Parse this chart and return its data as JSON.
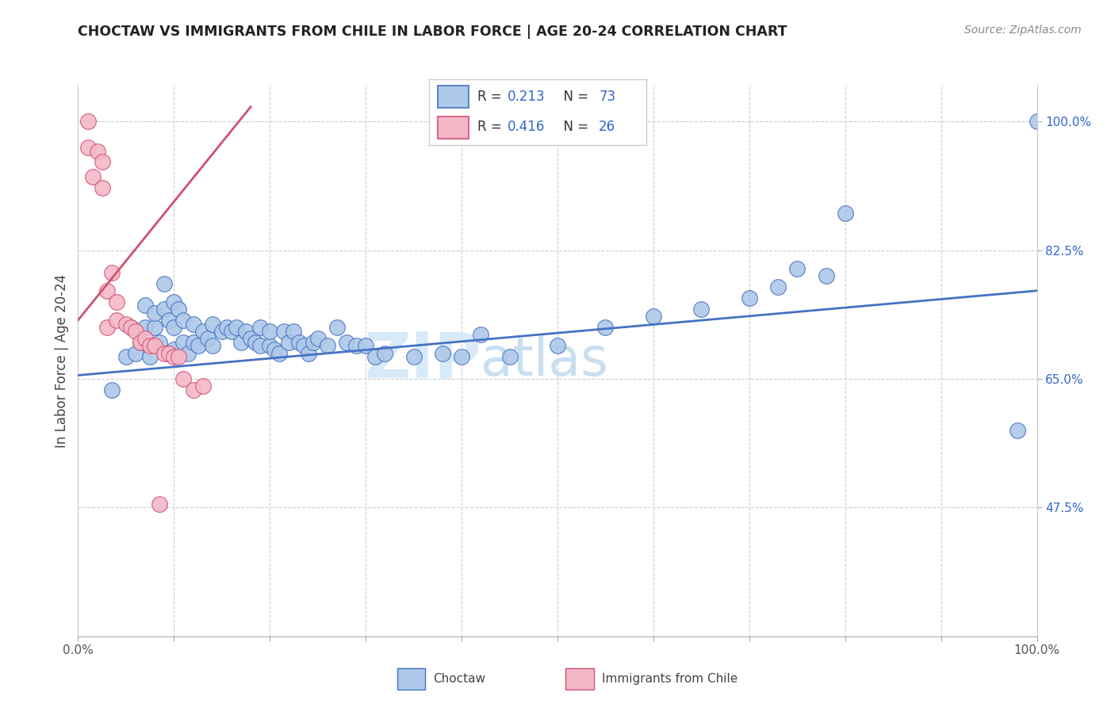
{
  "title": "CHOCTAW VS IMMIGRANTS FROM CHILE IN LABOR FORCE | AGE 20-24 CORRELATION CHART",
  "source": "Source: ZipAtlas.com",
  "ylabel": "In Labor Force | Age 20-24",
  "x_min": 0.0,
  "x_max": 1.0,
  "y_min": 0.3,
  "y_max": 1.05,
  "x_ticks": [
    0.0,
    0.1,
    0.2,
    0.3,
    0.4,
    0.5,
    0.6,
    0.7,
    0.8,
    0.9,
    1.0
  ],
  "y_tick_labels_right": [
    "100.0%",
    "82.5%",
    "65.0%",
    "47.5%"
  ],
  "y_tick_positions_right": [
    1.0,
    0.825,
    0.65,
    0.475
  ],
  "color_blue": "#adc8e8",
  "color_pink": "#f4b8c8",
  "trendline_blue": "#4472c4",
  "trendline_pink": "#d05070",
  "label_choctaw": "Choctaw",
  "label_chile": "Immigrants from Chile",
  "blue_points_x": [
    0.035,
    0.05,
    0.055,
    0.06,
    0.065,
    0.07,
    0.07,
    0.075,
    0.08,
    0.08,
    0.085,
    0.09,
    0.09,
    0.095,
    0.1,
    0.1,
    0.1,
    0.105,
    0.11,
    0.11,
    0.115,
    0.12,
    0.12,
    0.125,
    0.13,
    0.135,
    0.14,
    0.14,
    0.15,
    0.155,
    0.16,
    0.165,
    0.17,
    0.175,
    0.18,
    0.185,
    0.19,
    0.19,
    0.2,
    0.2,
    0.205,
    0.21,
    0.215,
    0.22,
    0.225,
    0.23,
    0.235,
    0.24,
    0.245,
    0.25,
    0.26,
    0.27,
    0.28,
    0.29,
    0.3,
    0.31,
    0.32,
    0.35,
    0.38,
    0.4,
    0.42,
    0.45,
    0.5,
    0.55,
    0.6,
    0.65,
    0.7,
    0.73,
    0.75,
    0.78,
    0.8,
    1.0,
    0.98
  ],
  "blue_points_y": [
    0.635,
    0.68,
    0.72,
    0.685,
    0.7,
    0.72,
    0.75,
    0.68,
    0.72,
    0.74,
    0.7,
    0.745,
    0.78,
    0.73,
    0.69,
    0.72,
    0.755,
    0.745,
    0.73,
    0.7,
    0.685,
    0.7,
    0.725,
    0.695,
    0.715,
    0.705,
    0.695,
    0.725,
    0.715,
    0.72,
    0.715,
    0.72,
    0.7,
    0.715,
    0.705,
    0.7,
    0.695,
    0.72,
    0.695,
    0.715,
    0.69,
    0.685,
    0.715,
    0.7,
    0.715,
    0.7,
    0.695,
    0.685,
    0.7,
    0.705,
    0.695,
    0.72,
    0.7,
    0.695,
    0.695,
    0.68,
    0.685,
    0.68,
    0.685,
    0.68,
    0.71,
    0.68,
    0.695,
    0.72,
    0.735,
    0.745,
    0.76,
    0.775,
    0.8,
    0.79,
    0.875,
    1.0,
    0.58
  ],
  "pink_points_x": [
    0.01,
    0.01,
    0.015,
    0.02,
    0.025,
    0.025,
    0.03,
    0.03,
    0.035,
    0.04,
    0.04,
    0.05,
    0.055,
    0.06,
    0.065,
    0.07,
    0.075,
    0.08,
    0.09,
    0.095,
    0.1,
    0.105,
    0.11,
    0.12,
    0.13,
    0.085
  ],
  "pink_points_y": [
    1.0,
    0.965,
    0.925,
    0.96,
    0.91,
    0.945,
    0.72,
    0.77,
    0.795,
    0.73,
    0.755,
    0.725,
    0.72,
    0.715,
    0.7,
    0.705,
    0.695,
    0.695,
    0.685,
    0.685,
    0.68,
    0.68,
    0.65,
    0.635,
    0.64,
    0.48
  ],
  "blue_trend_x": [
    0.0,
    1.0
  ],
  "blue_trend_y": [
    0.655,
    0.77
  ],
  "pink_trend_x": [
    0.0,
    0.18
  ],
  "pink_trend_y": [
    0.73,
    1.02
  ],
  "watermark_zip": "ZIP",
  "watermark_atlas": "atlas"
}
